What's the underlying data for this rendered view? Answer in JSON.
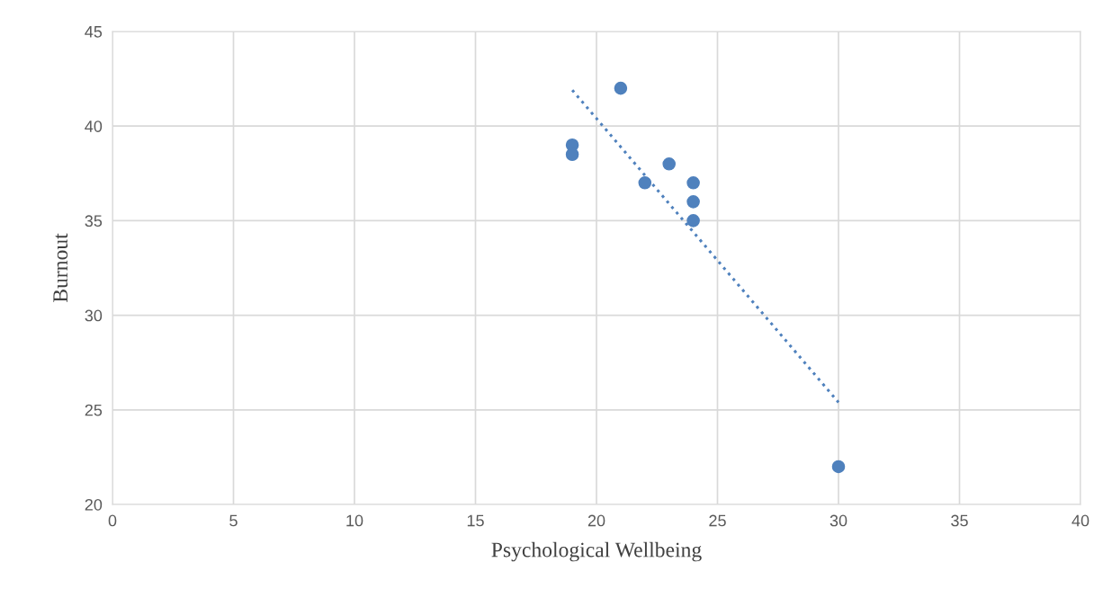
{
  "chart_data": {
    "type": "scatter",
    "xlabel": "Psychological Wellbeing",
    "ylabel": "Burnout",
    "xlim": [
      0,
      40
    ],
    "xticks": [
      0,
      5,
      10,
      15,
      20,
      25,
      30,
      35,
      40
    ],
    "ylim": [
      20,
      45
    ],
    "yticks": [
      20,
      25,
      30,
      35,
      40,
      45
    ],
    "grid": true,
    "marker": "circle",
    "series": [
      {
        "color": "#4f81bd",
        "x": [
          19,
          19,
          21,
          22,
          23,
          24,
          24,
          24,
          30
        ],
        "values": [
          39,
          38.5,
          42,
          37,
          38,
          37,
          36,
          35,
          22
        ]
      },
      {
        "type": "line",
        "color": "#4f81bd",
        "line_style": "dotted",
        "marker": "none",
        "x": [
          19,
          30
        ],
        "values": [
          41.9,
          25.4
        ]
      }
    ]
  }
}
